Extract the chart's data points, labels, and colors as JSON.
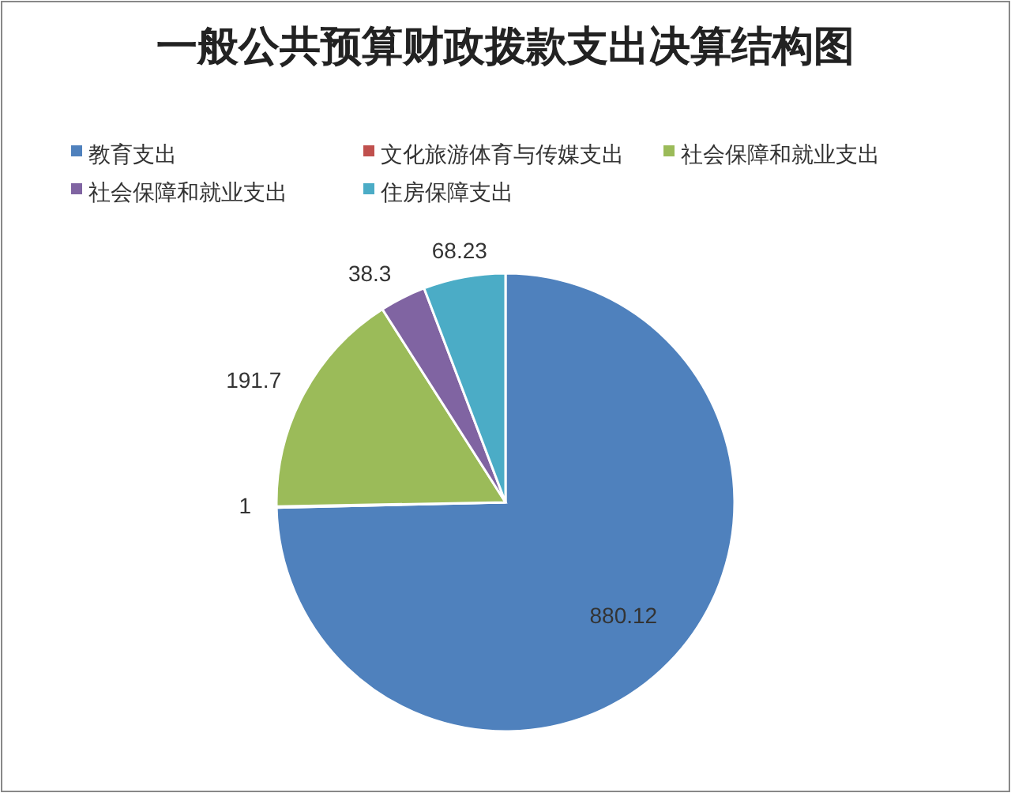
{
  "chart_data": {
    "type": "pie",
    "title": "一般公共预算财政拨款支出决算结构图",
    "categories": [
      "教育支出",
      "文化旅游体育与传媒支出",
      "社会保障和就业支出",
      "社会保障和就业支出",
      "住房保障支出"
    ],
    "values": [
      880.12,
      1,
      191.7,
      38.3,
      68.23
    ],
    "colors": [
      "#4f81bd",
      "#c0504d",
      "#9bbb59",
      "#8064a2",
      "#4bacc6"
    ],
    "data_labels": true,
    "legend": "top"
  }
}
